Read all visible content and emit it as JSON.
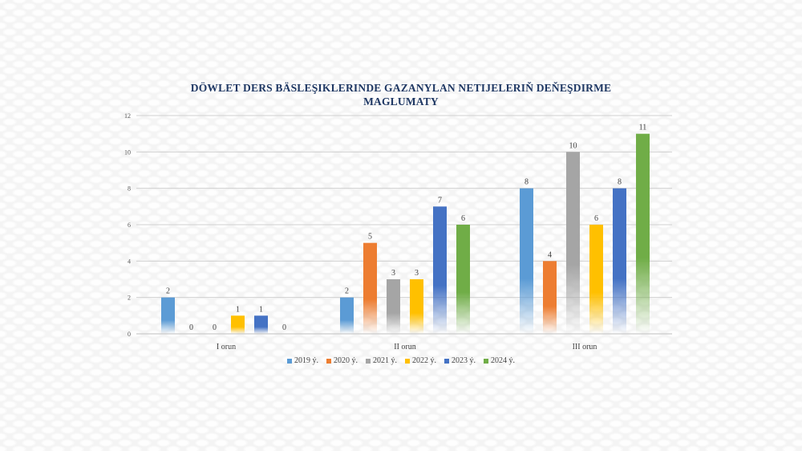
{
  "chart_data": {
    "type": "bar",
    "title": "DÖWLET DERS BÄSLEŞIKLERINDE GAZANYLAN NETIJELERIŇ DEŇEŞDIRME MAGLUMATY",
    "categories": [
      "I orun",
      "II orun",
      "III orun"
    ],
    "series": [
      {
        "name": "2019 ý.",
        "color": "#5b9bd5",
        "values": [
          2,
          2,
          8
        ]
      },
      {
        "name": "2020 ý.",
        "color": "#ed7d31",
        "values": [
          0,
          5,
          4
        ]
      },
      {
        "name": "2021 ý.",
        "color": "#a5a5a5",
        "values": [
          0,
          3,
          10
        ]
      },
      {
        "name": "2022 ý.",
        "color": "#ffc000",
        "values": [
          1,
          3,
          6
        ]
      },
      {
        "name": "2023 ý.",
        "color": "#4472c4",
        "values": [
          1,
          7,
          8
        ]
      },
      {
        "name": "2024 ý.",
        "color": "#70ad47",
        "values": [
          0,
          6,
          11
        ]
      }
    ],
    "ylim": [
      0,
      12
    ],
    "yticks": [
      0,
      2,
      4,
      6,
      8,
      10,
      12
    ],
    "grid": true,
    "legend": "bottom",
    "data_labels": true
  }
}
